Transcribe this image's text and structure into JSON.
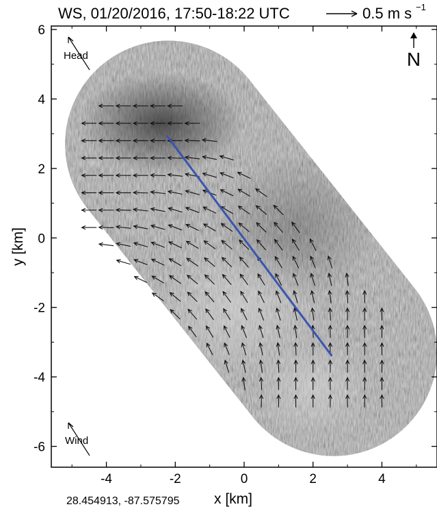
{
  "chart_data": {
    "type": "quiver",
    "title": "WS, 01/20/2016, 17:50-18:22 UTC",
    "scale_label": "0.5 m s",
    "scale_exp": "−1",
    "xlabel": "x [km]",
    "ylabel": "y [km]",
    "xlim": [
      -5.6,
      5.6
    ],
    "ylim": [
      -6.6,
      6.1
    ],
    "xticks": [
      -4,
      -2,
      0,
      2,
      4
    ],
    "yticks": [
      -6,
      -4,
      -2,
      0,
      2,
      4,
      6
    ],
    "north_label": "N",
    "coordinates_label": "28.454913, -87.575795",
    "head_indicator": {
      "label": "Head",
      "dx": 0.6,
      "dy": -1.0
    },
    "wind_indicator": {
      "label": "Wind",
      "dx": 0.6,
      "dy": -1.0
    },
    "track": {
      "color": "#3a55b0",
      "from": [
        -2.25,
        2.95
      ],
      "to": [
        2.55,
        -3.4
      ]
    },
    "swath": {
      "p1": [
        -2.2,
        2.7
      ],
      "p2": [
        2.6,
        -3.3
      ],
      "half_width": 3.0
    },
    "vector_region": {
      "x1": -3.0,
      "y1": 2.0,
      "x2": 2.2,
      "y2": -3.6,
      "half_width": 2.3
    },
    "vector_grid": {
      "dx": 0.5,
      "dy": 0.5,
      "x_min": -4.5,
      "x_max": 4.5,
      "y_min": -5.0,
      "y_max": 4.8
    },
    "vector_field_regimes": [
      {
        "region": "north-west",
        "direction": "west",
        "speed_m_s": 0.45
      },
      {
        "region": "center",
        "direction": "north-west",
        "speed_m_s": 0.4
      },
      {
        "region": "south-east",
        "direction": "north",
        "speed_m_s": 0.35
      }
    ],
    "reference_vector_m_s": 0.5,
    "colors": {
      "track": "#3a55b0",
      "arrow": "#111111",
      "background": "#8a8a8a"
    }
  }
}
